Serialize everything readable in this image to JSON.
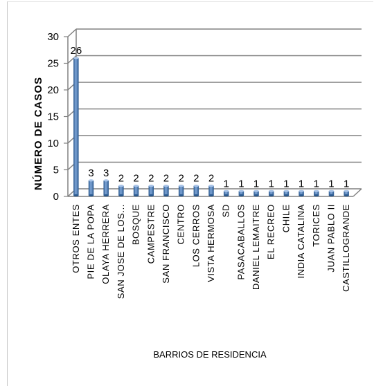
{
  "chart_data": {
    "type": "bar",
    "title": "",
    "xlabel": "BARRIOS DE RESIDENCIA",
    "ylabel": "NÚMERO DE CASOS",
    "ylim": [
      0,
      30
    ],
    "yticks": [
      0,
      5,
      10,
      15,
      20,
      25,
      30
    ],
    "grid": true,
    "legend": "none",
    "categories": [
      "OTROS ENTES",
      "PIE DE LA POPA",
      "OLAYA HERRERA",
      "SAN JOSE DE LOS...",
      "BOSQUE",
      "CAMPESTRE",
      "SAN FRANCISCO",
      "CENTRO",
      "LOS CERROS",
      "VISTA HERMOSA",
      "SD",
      "PASACABALLOS",
      "DANIEL LEMAITRE",
      "EL RECREO",
      "CHILE",
      "INDIA CATALINA",
      "TORICES",
      "JUAN PABLO II",
      "CASTILLOGRANDE"
    ],
    "values": [
      26,
      3,
      3,
      2,
      2,
      2,
      2,
      2,
      2,
      2,
      1,
      1,
      1,
      1,
      1,
      1,
      1,
      1,
      1
    ],
    "colors": {
      "bar": "#4f81bd",
      "bar_dark": "#2c5a8f",
      "bar_light": "#a9c4e8",
      "grid": "#808080"
    }
  }
}
